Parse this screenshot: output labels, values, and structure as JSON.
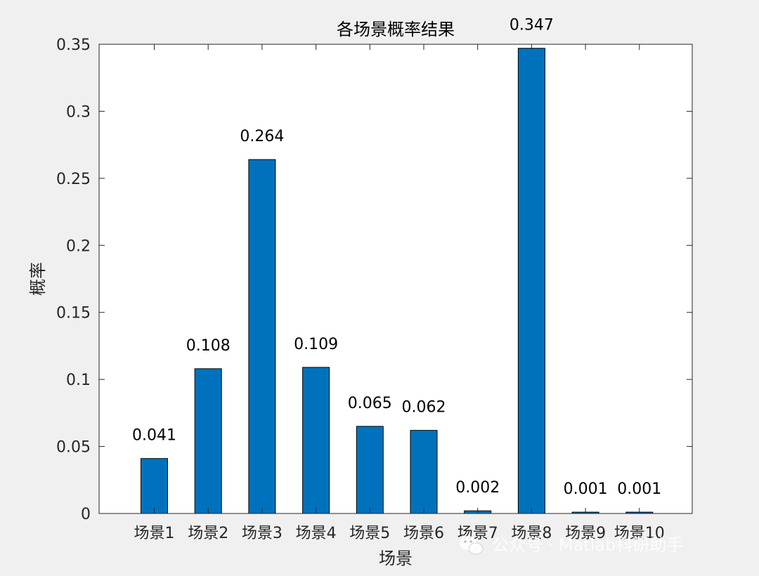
{
  "chart_data": {
    "type": "bar",
    "title": "各场景概率结果",
    "xlabel": "场景",
    "ylabel": "概率",
    "categories": [
      "场景1",
      "场景2",
      "场景3",
      "场景4",
      "场景5",
      "场景6",
      "场景7",
      "场景8",
      "场景9",
      "场景10"
    ],
    "values": [
      0.041,
      0.108,
      0.264,
      0.109,
      0.065,
      0.062,
      0.002,
      0.347,
      0.001,
      0.001
    ],
    "data_labels": [
      "0.041",
      "0.108",
      "0.264",
      "0.109",
      "0.065",
      "0.062",
      "0.002",
      "0.347",
      "0.001",
      "0.001"
    ],
    "ylim": [
      0,
      0.35
    ],
    "yticks": [
      0,
      0.05,
      0.1,
      0.15,
      0.2,
      0.25,
      0.3,
      0.35
    ],
    "ytick_labels": [
      "0",
      "0.05",
      "0.1",
      "0.15",
      "0.2",
      "0.25",
      "0.3",
      "0.35"
    ],
    "grid": false,
    "bar_color": "#0072BD"
  },
  "watermark": {
    "icon": "wechat-icon",
    "text": "公众号 · Matlab科研助手"
  }
}
